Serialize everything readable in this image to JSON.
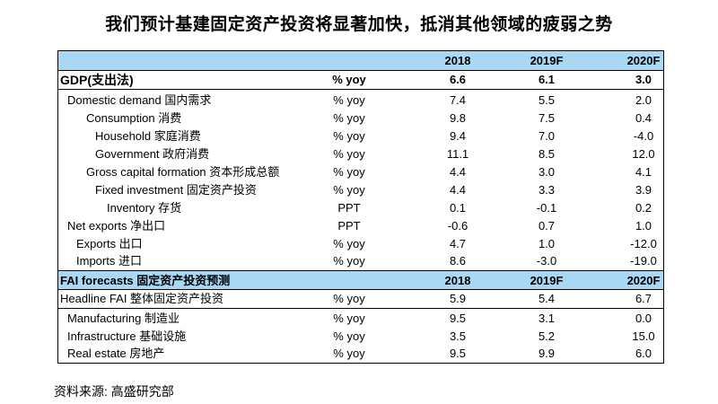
{
  "title": "我们预计基建固定资产投资将显著加快，抵消其他领域的疲弱之势",
  "header1": {
    "c1": "2018",
    "c2": "2019F",
    "c3": "2020F"
  },
  "gdp": {
    "label": "GDP(支出法)",
    "unit": "% yoy",
    "c1": "6.6",
    "c2": "6.1",
    "c3": "3.0"
  },
  "rows": [
    {
      "label": "Domestic demand 国内需求",
      "unit": "% yoy",
      "c1": "7.4",
      "c2": "5.5",
      "c3": "2.0"
    },
    {
      "label": "Consumption 消费",
      "unit": "% yoy",
      "c1": "9.8",
      "c2": "7.5",
      "c3": "0.4"
    },
    {
      "label": "Household 家庭消费",
      "unit": "% yoy",
      "c1": "9.4",
      "c2": "7.0",
      "c3": "-4.0"
    },
    {
      "label": "Government 政府消费",
      "unit": "% yoy",
      "c1": "11.1",
      "c2": "8.5",
      "c3": "12.0"
    },
    {
      "label": "Gross capital formation 资本形成总额",
      "unit": "% yoy",
      "c1": "4.4",
      "c2": "3.0",
      "c3": "4.1"
    },
    {
      "label": "Fixed investment 固定资产投资",
      "unit": "% yoy",
      "c1": "4.4",
      "c2": "3.3",
      "c3": "3.9"
    },
    {
      "label": "Inventory 存货",
      "unit": "PPT",
      "c1": "0.1",
      "c2": "-0.1",
      "c3": "0.2"
    },
    {
      "label": "Net exports 净出口",
      "unit": "PPT",
      "c1": "-0.6",
      "c2": "0.7",
      "c3": "1.0"
    },
    {
      "label": "Exports 出口",
      "unit": "% yoy",
      "c1": "4.7",
      "c2": "1.0",
      "c3": "-12.0"
    },
    {
      "label": "Imports 进口",
      "unit": "% yoy",
      "c1": "8.6",
      "c2": "-3.0",
      "c3": "-19.0"
    }
  ],
  "header2": {
    "label": "FAI forecasts 固定资产投资预测",
    "c1": "2018",
    "c2": "2019F",
    "c3": "2020F"
  },
  "headline": {
    "label": "Headline FAI 整体固定资产投资",
    "unit": "% yoy",
    "c1": "5.9",
    "c2": "5.4",
    "c3": "6.7"
  },
  "fai_rows": [
    {
      "label": "Manufacturing 制造业",
      "unit": "% yoy",
      "c1": "9.5",
      "c2": "3.1",
      "c3": "0.0"
    },
    {
      "label": "Infrastructure 基础设施",
      "unit": "% yoy",
      "c1": "3.5",
      "c2": "5.2",
      "c3": "15.0"
    },
    {
      "label": "Real estate 房地产",
      "unit": "% yoy",
      "c1": "9.5",
      "c2": "9.9",
      "c3": "6.0"
    }
  ],
  "source": "资料来源: 高盛研究部"
}
